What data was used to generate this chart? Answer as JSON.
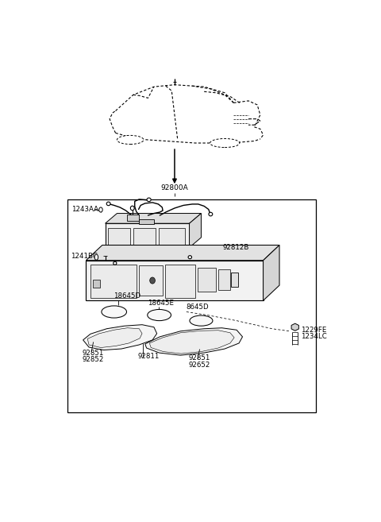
{
  "bg_color": "#ffffff",
  "lc": "#000000",
  "fig_w": 4.8,
  "fig_h": 6.57,
  "dpi": 100,
  "labels": {
    "92800A": [
      0.5,
      0.668,
      "center"
    ],
    "1243AA": [
      0.085,
      0.622,
      "left"
    ],
    "92812B": [
      0.595,
      0.538,
      "left"
    ],
    "1241BC": [
      0.078,
      0.518,
      "left"
    ],
    "18645D": [
      0.27,
      0.415,
      "left"
    ],
    "18645E": [
      0.36,
      0.396,
      "left"
    ],
    "8645D": [
      0.49,
      0.385,
      "left"
    ],
    "1229FE": [
      0.87,
      0.328,
      "left"
    ],
    "1234LC": [
      0.87,
      0.31,
      "left"
    ],
    "92851_L": [
      0.158,
      0.265,
      "left"
    ],
    "92852_L": [
      0.158,
      0.248,
      "left"
    ],
    "92811": [
      0.34,
      0.258,
      "left"
    ],
    "92851_R": [
      0.49,
      0.248,
      "left"
    ],
    "92652_R": [
      0.49,
      0.23,
      "left"
    ]
  }
}
